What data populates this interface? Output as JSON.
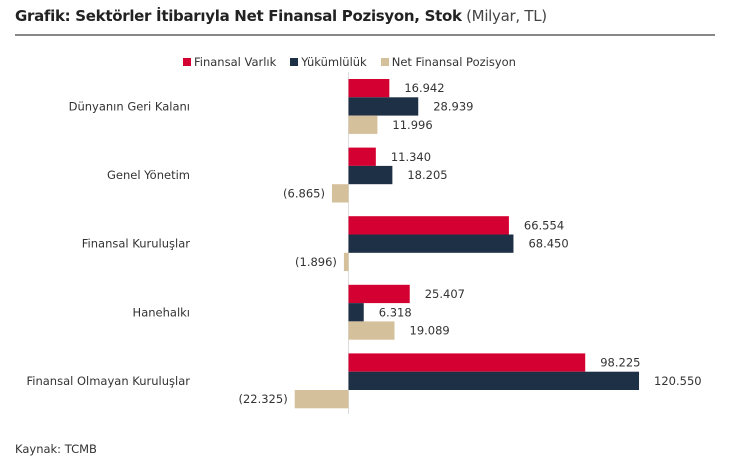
{
  "chart_data": {
    "type": "bar",
    "orientation": "horizontal",
    "title": "Grafik: Sektörler İtibarıyla Net Finansal Pozisyon, Stok",
    "unit": "(Milyar, TL)",
    "categories": [
      "Dünyanın Geri Kalanı",
      "Genel Yönetim",
      "Finansal Kuruluşlar",
      "Hanehalkı",
      "Finansal Olmayan Kuruluşlar"
    ],
    "series": [
      {
        "name": "Finansal Varlık",
        "color": "#d50032",
        "values": [
          16.942,
          11.34,
          66.554,
          25.407,
          98.225
        ],
        "labels": [
          "16.942",
          "11.340",
          "66.554",
          "25.407",
          "98.225"
        ]
      },
      {
        "name": "Yükümlülük",
        "color": "#1e3046",
        "values": [
          28.939,
          18.205,
          68.45,
          6.318,
          120.55
        ],
        "labels": [
          "28.939",
          "18.205",
          "68.450",
          "6.318",
          "120.550"
        ]
      },
      {
        "name": "Net Finansal Pozisyon",
        "color": "#d5c09c",
        "values": [
          11.996,
          -6.865,
          -1.896,
          19.089,
          -22.325
        ],
        "labels": [
          "11.996",
          "(6.865)",
          "(1.896)",
          "19.089",
          "(22.325)"
        ]
      }
    ],
    "legend_position": "top",
    "grid": false
  },
  "source": "Kaynak: TCMB"
}
